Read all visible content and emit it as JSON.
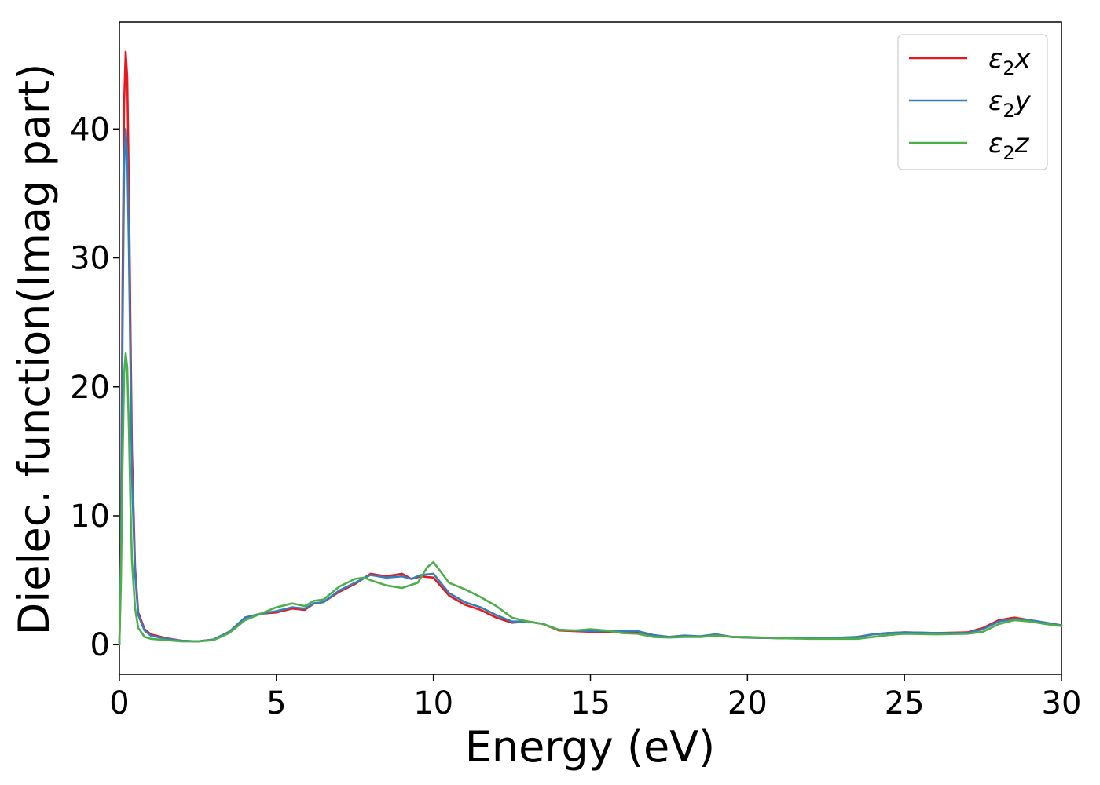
{
  "chart_data": {
    "type": "line",
    "xlabel": "Energy (eV)",
    "ylabel": "Dielec. function(Imag part)",
    "xlim": [
      0,
      30
    ],
    "ylim": [
      -2.3,
      48.3
    ],
    "xticks": [
      0,
      5,
      10,
      15,
      20,
      25,
      30
    ],
    "yticks": [
      0,
      10,
      20,
      30,
      40
    ],
    "grid": false,
    "legend_position": "top-right",
    "series": [
      {
        "name": "ε2x",
        "legend_base": "ε",
        "legend_sub": "2",
        "legend_suffix": "x",
        "color": "#e41a1c",
        "points": [
          [
            0,
            0
          ],
          [
            0.05,
            8
          ],
          [
            0.1,
            28
          ],
          [
            0.15,
            42
          ],
          [
            0.2,
            46
          ],
          [
            0.25,
            44
          ],
          [
            0.3,
            36
          ],
          [
            0.35,
            25
          ],
          [
            0.4,
            15
          ],
          [
            0.5,
            6
          ],
          [
            0.6,
            2.5
          ],
          [
            0.8,
            1.2
          ],
          [
            1,
            0.8
          ],
          [
            1.5,
            0.5
          ],
          [
            2,
            0.3
          ],
          [
            2.5,
            0.25
          ],
          [
            3,
            0.4
          ],
          [
            3.5,
            1
          ],
          [
            4,
            2.1
          ],
          [
            4.5,
            2.4
          ],
          [
            5,
            2.5
          ],
          [
            5.5,
            2.8
          ],
          [
            5.9,
            2.7
          ],
          [
            6.2,
            3.2
          ],
          [
            6.5,
            3.3
          ],
          [
            7,
            4.1
          ],
          [
            7.5,
            4.7
          ],
          [
            8,
            5.5
          ],
          [
            8.5,
            5.3
          ],
          [
            9,
            5.5
          ],
          [
            9.3,
            5.1
          ],
          [
            9.6,
            5.3
          ],
          [
            10,
            5.2
          ],
          [
            10.5,
            3.8
          ],
          [
            11,
            3.1
          ],
          [
            11.5,
            2.7
          ],
          [
            12,
            2.1
          ],
          [
            12.5,
            1.7
          ],
          [
            13,
            1.8
          ],
          [
            13.5,
            1.6
          ],
          [
            14,
            1.1
          ],
          [
            15,
            1.0
          ],
          [
            16,
            1.0
          ],
          [
            16.5,
            1.0
          ],
          [
            17,
            0.7
          ],
          [
            17.5,
            0.6
          ],
          [
            18,
            0.7
          ],
          [
            18.5,
            0.6
          ],
          [
            19,
            0.8
          ],
          [
            19.5,
            0.6
          ],
          [
            20,
            0.55
          ],
          [
            21,
            0.5
          ],
          [
            22,
            0.5
          ],
          [
            23,
            0.5
          ],
          [
            23.5,
            0.6
          ],
          [
            24,
            0.8
          ],
          [
            24.5,
            0.9
          ],
          [
            25,
            0.95
          ],
          [
            26,
            0.9
          ],
          [
            27,
            0.95
          ],
          [
            27.5,
            1.3
          ],
          [
            28,
            1.9
          ],
          [
            28.5,
            2.1
          ],
          [
            29,
            1.9
          ],
          [
            29.5,
            1.7
          ],
          [
            30,
            1.5
          ]
        ]
      },
      {
        "name": "ε2y",
        "legend_base": "ε",
        "legend_sub": "2",
        "legend_suffix": "y",
        "color": "#377eb8",
        "points": [
          [
            0,
            0
          ],
          [
            0.05,
            7
          ],
          [
            0.1,
            24
          ],
          [
            0.15,
            37
          ],
          [
            0.2,
            40
          ],
          [
            0.25,
            38
          ],
          [
            0.3,
            31
          ],
          [
            0.35,
            22
          ],
          [
            0.4,
            13
          ],
          [
            0.5,
            5.5
          ],
          [
            0.6,
            2.3
          ],
          [
            0.8,
            1.1
          ],
          [
            1,
            0.7
          ],
          [
            1.5,
            0.45
          ],
          [
            2,
            0.3
          ],
          [
            2.5,
            0.25
          ],
          [
            3,
            0.4
          ],
          [
            3.5,
            1
          ],
          [
            4,
            2.1
          ],
          [
            4.5,
            2.4
          ],
          [
            5,
            2.6
          ],
          [
            5.5,
            2.9
          ],
          [
            5.9,
            2.8
          ],
          [
            6.2,
            3.2
          ],
          [
            6.5,
            3.3
          ],
          [
            7,
            4.2
          ],
          [
            7.5,
            4.8
          ],
          [
            8,
            5.4
          ],
          [
            8.5,
            5.2
          ],
          [
            9,
            5.3
          ],
          [
            9.3,
            5.1
          ],
          [
            9.6,
            5.4
          ],
          [
            10,
            5.5
          ],
          [
            10.5,
            4.0
          ],
          [
            11,
            3.3
          ],
          [
            11.5,
            2.9
          ],
          [
            12,
            2.3
          ],
          [
            12.5,
            1.8
          ],
          [
            13,
            1.8
          ],
          [
            13.5,
            1.6
          ],
          [
            14,
            1.15
          ],
          [
            15,
            1.05
          ],
          [
            16,
            1.05
          ],
          [
            16.5,
            1.05
          ],
          [
            17,
            0.75
          ],
          [
            17.5,
            0.6
          ],
          [
            18,
            0.7
          ],
          [
            18.5,
            0.65
          ],
          [
            19,
            0.8
          ],
          [
            19.5,
            0.6
          ],
          [
            20,
            0.55
          ],
          [
            21,
            0.5
          ],
          [
            22,
            0.5
          ],
          [
            23,
            0.55
          ],
          [
            23.5,
            0.6
          ],
          [
            24,
            0.8
          ],
          [
            24.5,
            0.9
          ],
          [
            25,
            0.95
          ],
          [
            26,
            0.9
          ],
          [
            27,
            0.9
          ],
          [
            27.5,
            1.2
          ],
          [
            28,
            1.8
          ],
          [
            28.5,
            2.0
          ],
          [
            29,
            1.9
          ],
          [
            29.5,
            1.7
          ],
          [
            30,
            1.5
          ]
        ]
      },
      {
        "name": "ε2z",
        "legend_base": "ε",
        "legend_sub": "2",
        "legend_suffix": "z",
        "color": "#4daf4a",
        "points": [
          [
            0,
            0
          ],
          [
            0.05,
            5
          ],
          [
            0.1,
            14
          ],
          [
            0.15,
            21
          ],
          [
            0.2,
            22.6
          ],
          [
            0.25,
            21.5
          ],
          [
            0.3,
            17
          ],
          [
            0.35,
            11
          ],
          [
            0.4,
            6.5
          ],
          [
            0.5,
            2.8
          ],
          [
            0.6,
            1.3
          ],
          [
            0.8,
            0.6
          ],
          [
            1,
            0.45
          ],
          [
            1.5,
            0.35
          ],
          [
            2,
            0.25
          ],
          [
            2.5,
            0.25
          ],
          [
            3,
            0.35
          ],
          [
            3.5,
            0.9
          ],
          [
            4,
            1.9
          ],
          [
            4.5,
            2.4
          ],
          [
            5,
            2.9
          ],
          [
            5.5,
            3.2
          ],
          [
            5.9,
            3.0
          ],
          [
            6.2,
            3.4
          ],
          [
            6.5,
            3.5
          ],
          [
            7,
            4.5
          ],
          [
            7.5,
            5.1
          ],
          [
            7.8,
            5.2
          ],
          [
            8,
            5.0
          ],
          [
            8.5,
            4.6
          ],
          [
            9,
            4.4
          ],
          [
            9.5,
            4.8
          ],
          [
            9.8,
            6.0
          ],
          [
            10,
            6.4
          ],
          [
            10.5,
            4.8
          ],
          [
            11,
            4.3
          ],
          [
            11.5,
            3.7
          ],
          [
            12,
            3.0
          ],
          [
            12.5,
            2.1
          ],
          [
            13,
            1.8
          ],
          [
            13.5,
            1.6
          ],
          [
            14,
            1.15
          ],
          [
            14.5,
            1.1
          ],
          [
            15,
            1.2
          ],
          [
            15.5,
            1.1
          ],
          [
            16,
            0.9
          ],
          [
            16.5,
            0.85
          ],
          [
            17,
            0.6
          ],
          [
            17.5,
            0.55
          ],
          [
            18,
            0.6
          ],
          [
            18.5,
            0.6
          ],
          [
            19,
            0.7
          ],
          [
            19.5,
            0.6
          ],
          [
            20,
            0.6
          ],
          [
            21,
            0.5
          ],
          [
            22,
            0.45
          ],
          [
            23,
            0.45
          ],
          [
            23.5,
            0.45
          ],
          [
            24,
            0.6
          ],
          [
            24.5,
            0.75
          ],
          [
            25,
            0.85
          ],
          [
            26,
            0.8
          ],
          [
            27,
            0.85
          ],
          [
            27.5,
            1.0
          ],
          [
            28,
            1.6
          ],
          [
            28.5,
            1.9
          ],
          [
            29,
            1.8
          ],
          [
            29.5,
            1.6
          ],
          [
            30,
            1.45
          ]
        ]
      }
    ]
  }
}
